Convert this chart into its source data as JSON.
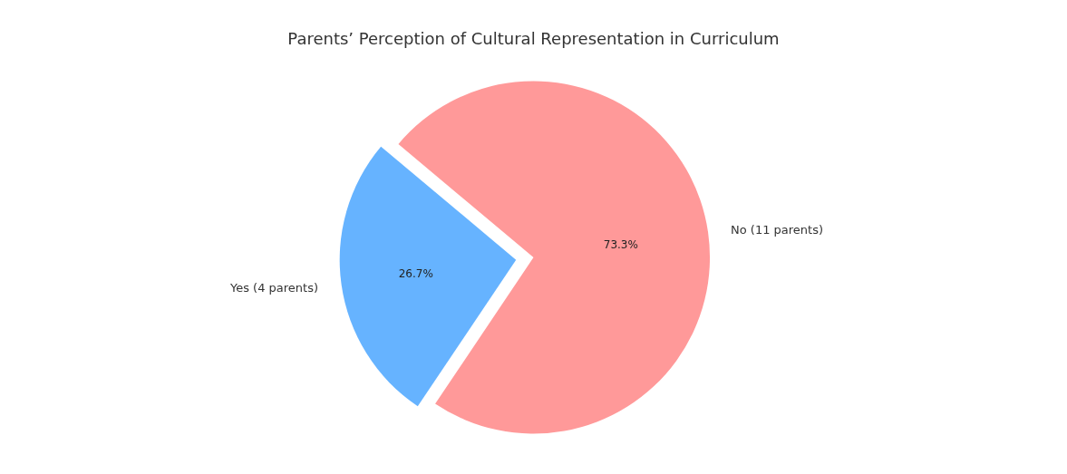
{
  "chart_data": {
    "type": "pie",
    "title": "Parents’ Perception of Cultural Representation in Curriculum",
    "categories": [
      "Yes (4 parents)",
      "No (11 parents)"
    ],
    "values": [
      26.7,
      73.3
    ],
    "colors": [
      "#66b3ff",
      "#ff9999"
    ],
    "value_labels": [
      "26.7%",
      "73.3%"
    ]
  }
}
